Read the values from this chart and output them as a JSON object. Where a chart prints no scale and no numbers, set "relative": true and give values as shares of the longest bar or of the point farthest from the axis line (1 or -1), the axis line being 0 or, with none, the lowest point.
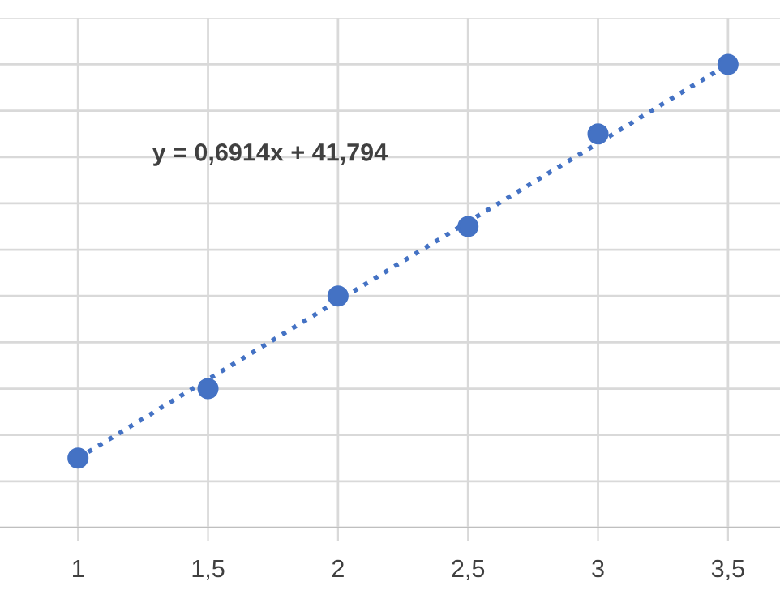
{
  "chart_data": {
    "type": "scatter",
    "relative": true,
    "x": [
      1,
      1.5,
      2,
      2.5,
      3,
      3.5
    ],
    "xlim": [
      0.7,
      3.7
    ],
    "xticks": [
      {
        "value": 1,
        "label": "1"
      },
      {
        "value": 1.5,
        "label": "1,5"
      },
      {
        "value": 2,
        "label": "2"
      },
      {
        "value": 2.5,
        "label": "2,5"
      },
      {
        "value": 3,
        "label": "3"
      },
      {
        "value": 3.5,
        "label": "3,5"
      }
    ],
    "tick_labels": "x",
    "grid": true,
    "series": [
      {
        "marker": "circle",
        "color": "#4472c4",
        "values": [
          0.15,
          0.3,
          0.5,
          0.65,
          0.85,
          1.0
        ]
      },
      {
        "type": "line",
        "line_style": "dotted",
        "color": "#4472c4",
        "x": [
          1,
          3.5
        ],
        "values": [
          0.15,
          1.0
        ]
      }
    ],
    "annotations": [
      "y = 0,6914x + 41,794"
    ]
  }
}
